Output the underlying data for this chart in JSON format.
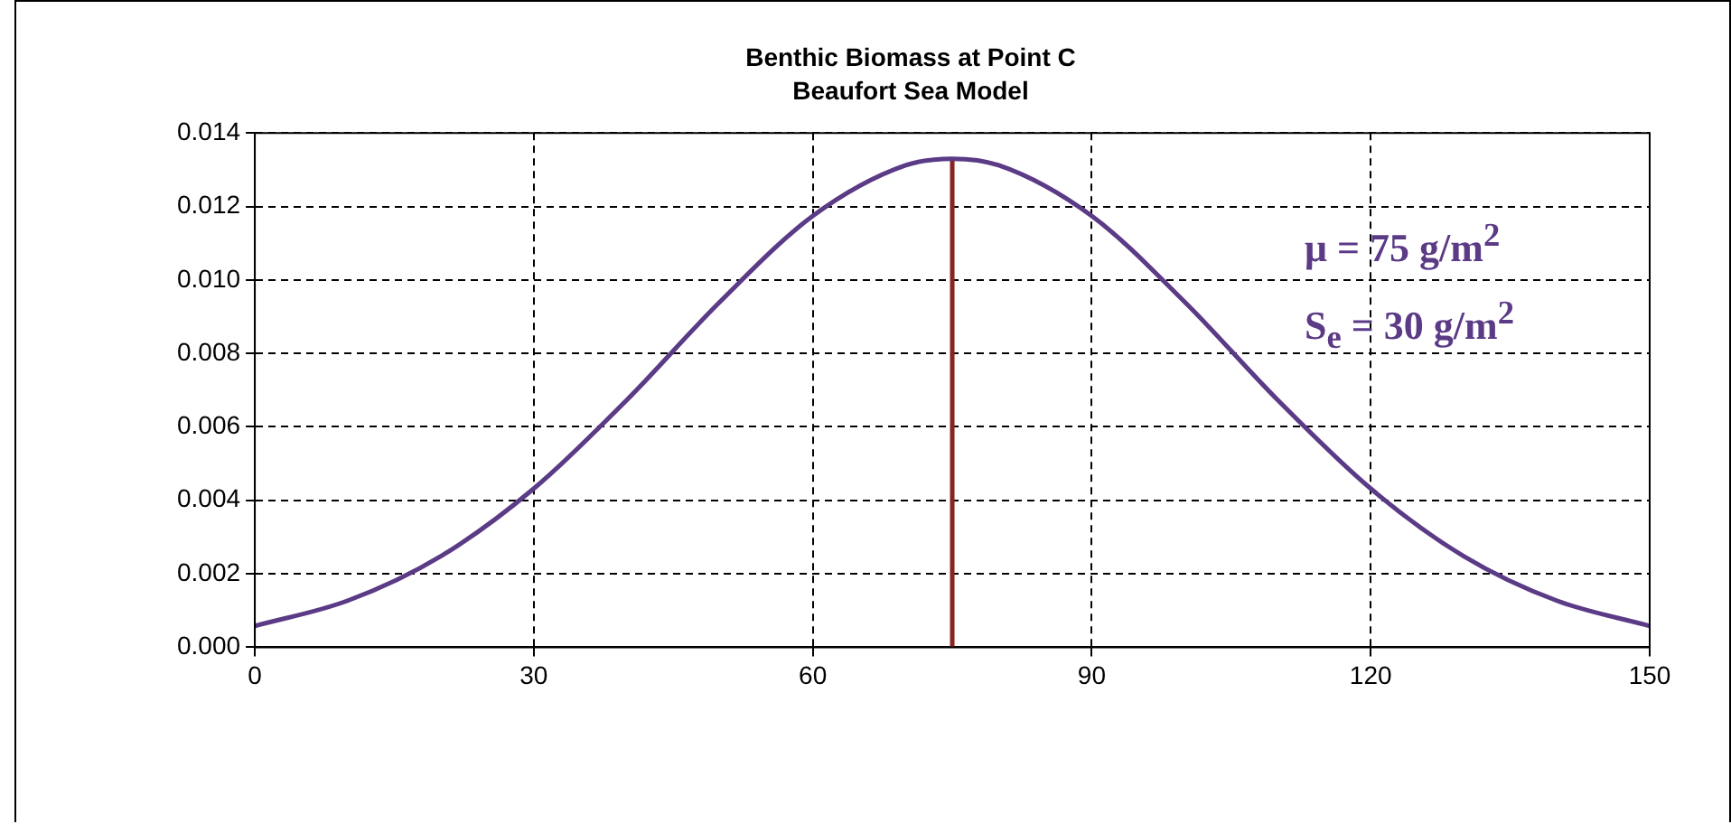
{
  "chart_data": {
    "type": "line",
    "title": "Benthic Biomass at Point C",
    "subtitle": "Beaufort Sea Model",
    "x": [
      0,
      10,
      20,
      30,
      40,
      50,
      60,
      70,
      75,
      80,
      90,
      100,
      110,
      120,
      130,
      140,
      150
    ],
    "series": [
      {
        "color": "#5b3a86",
        "values": [
          0.00058,
          0.00127,
          0.00248,
          0.00432,
          0.00673,
          0.0094,
          0.01174,
          0.01312,
          0.0133,
          0.01312,
          0.01174,
          0.0094,
          0.00673,
          0.00432,
          0.00248,
          0.00127,
          0.00058
        ]
      },
      {
        "color": "#8b2323",
        "x": [
          75,
          75
        ],
        "values": [
          0,
          0.0133
        ]
      }
    ],
    "xlim": [
      0,
      150
    ],
    "xticks": [
      0,
      30,
      60,
      90,
      120,
      150
    ],
    "ylim": [
      0,
      0.014
    ],
    "yticks": [
      {
        "value": 0,
        "label": "0.000"
      },
      {
        "value": 0.002,
        "label": "0.002"
      },
      {
        "value": 0.004,
        "label": "0.004"
      },
      {
        "value": 0.006,
        "label": "0.006"
      },
      {
        "value": 0.008,
        "label": "0.008"
      },
      {
        "value": 0.01,
        "label": "0.010"
      },
      {
        "value": 0.012,
        "label": "0.012"
      },
      {
        "value": 0.014,
        "label": "0.014"
      }
    ],
    "annotations": [
      "μ = 75 g/m$^{2}$",
      "S$_{e}$ = 30 g/m$^{2}$"
    ],
    "grid": true,
    "legend": false,
    "marker": "none",
    "line_style": "solid"
  }
}
